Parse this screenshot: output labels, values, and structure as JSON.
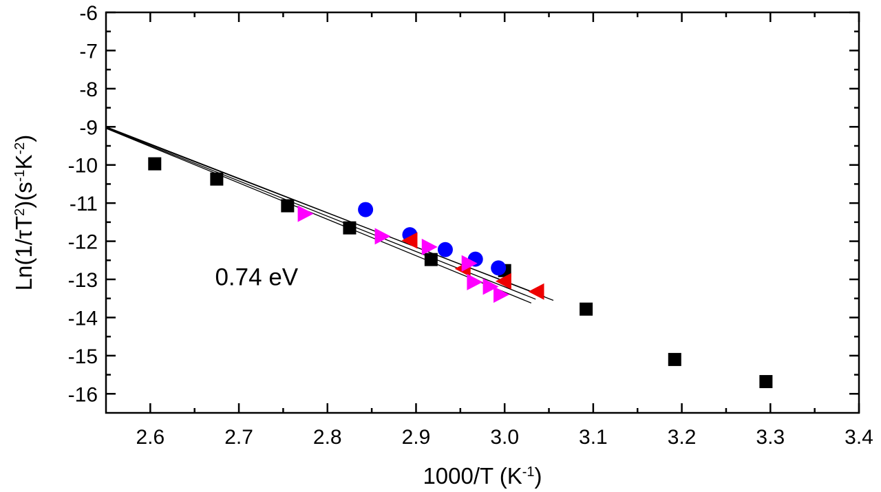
{
  "chart_data": {
    "type": "scatter",
    "title": "",
    "xlabel": {
      "parts": [
        {
          "text": "1000/T (K",
          "sup": false
        },
        {
          "text": "-1",
          "sup": true
        },
        {
          "text": ")",
          "sup": false
        }
      ]
    },
    "ylabel": {
      "parts": [
        {
          "text": "Ln(1/τT",
          "sup": false
        },
        {
          "text": "2",
          "sup": true
        },
        {
          "text": ")(s",
          "sup": false
        },
        {
          "text": "-1",
          "sup": true
        },
        {
          "text": "K",
          "sup": false
        },
        {
          "text": "-2",
          "sup": true
        },
        {
          "text": ")",
          "sup": false
        }
      ]
    },
    "xlim": [
      2.55,
      3.4
    ],
    "ylim": [
      -16.5,
      -6
    ],
    "x_ticks": [
      2.6,
      2.7,
      2.8,
      2.9,
      3.0,
      3.1,
      3.2,
      3.3,
      3.4
    ],
    "x_tick_labels": [
      "2.6",
      "2.7",
      "2.8",
      "2.9",
      "3.0",
      "3.1",
      "3.2",
      "3.3",
      "3.4"
    ],
    "y_ticks": [
      -16,
      -15,
      -14,
      -13,
      -12,
      -11,
      -10,
      -9,
      -8,
      -7,
      -6
    ],
    "y_tick_labels": [
      "-16",
      "-15",
      "-14",
      "-13",
      "-12",
      "-11",
      "-10",
      "-9",
      "-8",
      "-7",
      "-6"
    ],
    "grid": false,
    "annotations": [
      {
        "text": "0.74 eV",
        "x": 2.72,
        "y": -13.15
      }
    ],
    "series": [
      {
        "name": "black squares",
        "marker": "square",
        "color": "#000000",
        "x": [
          2.605,
          2.675,
          2.755,
          2.825,
          2.917,
          3.0,
          3.092,
          3.192,
          3.295
        ],
        "y": [
          -9.97,
          -10.37,
          -11.07,
          -11.65,
          -12.48,
          -12.77,
          -13.78,
          -15.1,
          -15.68
        ]
      },
      {
        "name": "blue circles",
        "marker": "circle",
        "color": "#0000ff",
        "x": [
          2.843,
          2.893,
          2.933,
          2.967,
          2.993
        ],
        "y": [
          -11.17,
          -11.83,
          -12.22,
          -12.47,
          -12.7
        ]
      },
      {
        "name": "red left triangles",
        "marker": "triangle-left",
        "color": "#ee0000",
        "x": [
          2.893,
          2.953,
          2.999,
          3.036
        ],
        "y": [
          -11.98,
          -12.72,
          -13.05,
          -13.32
        ]
      },
      {
        "name": "magenta right triangles",
        "marker": "triangle-right",
        "color": "#ff00ff",
        "x": [
          2.775,
          2.862,
          2.915,
          2.96,
          2.966,
          2.984,
          2.996
        ],
        "y": [
          -11.28,
          -11.87,
          -12.15,
          -12.58,
          -13.07,
          -13.19,
          -13.4
        ]
      }
    ],
    "fit_lines": [
      {
        "x": [
          2.55,
          3.055
        ],
        "y": [
          -9.0,
          -13.55
        ],
        "color": "#000000"
      },
      {
        "x": [
          2.55,
          3.045
        ],
        "y": [
          -9.02,
          -13.45
        ],
        "color": "#000000"
      },
      {
        "x": [
          2.55,
          3.035
        ],
        "y": [
          -9.03,
          -13.52
        ],
        "color": "#000000"
      },
      {
        "x": [
          2.55,
          3.03
        ],
        "y": [
          -9.04,
          -13.62
        ],
        "color": "#000000"
      }
    ]
  }
}
